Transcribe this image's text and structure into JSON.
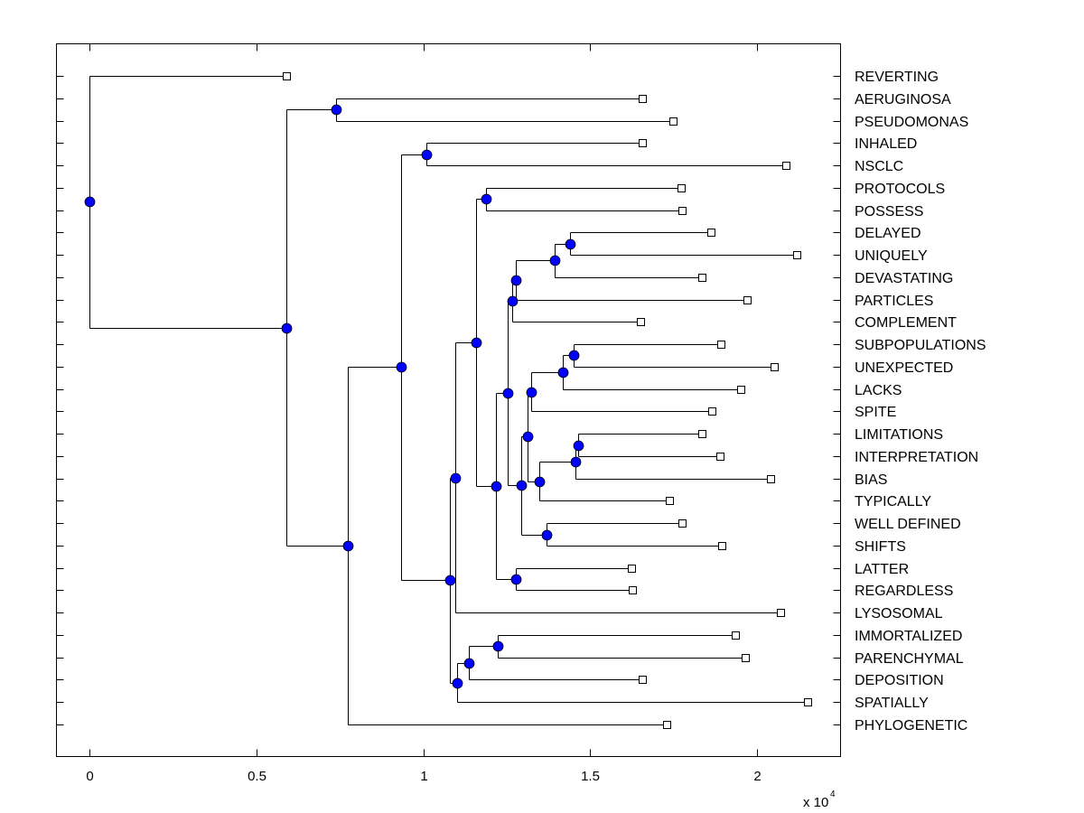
{
  "chart_data": {
    "type": "dendrogram",
    "title": "",
    "xlabel": "",
    "ylabel": "",
    "x_multiplier_label": "x 10",
    "x_multiplier_exponent": "4",
    "xlim": [
      -0.1,
      2.25
    ],
    "xticks": [
      0,
      0.5,
      1,
      1.5,
      2
    ],
    "xtick_labels": [
      "0",
      "0.5",
      "1",
      "1.5",
      "2"
    ],
    "grid": false,
    "internal_node_color": "#0000ff",
    "leaf_marker": "open-square",
    "leaves": [
      {
        "label": "REVERTING",
        "x": 0.589
      },
      {
        "label": "AERUGINOSA",
        "x": 1.657
      },
      {
        "label": "PSEUDOMONAS",
        "x": 1.749
      },
      {
        "label": "INHALED",
        "x": 1.657
      },
      {
        "label": "NSCLC",
        "x": 2.087
      },
      {
        "label": "PROTOCOLS",
        "x": 1.771
      },
      {
        "label": "POSSESS",
        "x": 1.774
      },
      {
        "label": "DELAYED",
        "x": 1.862
      },
      {
        "label": "UNIQUELY",
        "x": 2.12
      },
      {
        "label": "DEVASTATING",
        "x": 1.834
      },
      {
        "label": "PARTICLES",
        "x": 1.971
      },
      {
        "label": "COMPLEMENT",
        "x": 1.649
      },
      {
        "label": "SUBPOPULATIONS",
        "x": 1.891
      },
      {
        "label": "UNEXPECTED",
        "x": 2.052
      },
      {
        "label": "LACKS",
        "x": 1.951
      },
      {
        "label": "SPITE",
        "x": 1.864
      },
      {
        "label": "LIMITATIONS",
        "x": 1.834
      },
      {
        "label": "INTERPRETATION",
        "x": 1.888
      },
      {
        "label": "BIAS",
        "x": 2.041
      },
      {
        "label": "TYPICALLY",
        "x": 1.738
      },
      {
        "label": "WELL DEFINED",
        "x": 1.774
      },
      {
        "label": "SHIFTS",
        "x": 1.894
      },
      {
        "label": "LATTER",
        "x": 1.624
      },
      {
        "label": "REGARDLESS",
        "x": 1.627
      },
      {
        "label": "LYSOSOMAL",
        "x": 2.071
      },
      {
        "label": "IMMORTALIZED",
        "x": 1.935
      },
      {
        "label": "PARENCHYMAL",
        "x": 1.965
      },
      {
        "label": "DEPOSITION",
        "x": 1.657
      },
      {
        "label": "SPATIALLY",
        "x": 2.15
      },
      {
        "label": "PHYLOGENETIC",
        "x": 1.73
      }
    ],
    "nodes": [
      {
        "id": "root",
        "x": 0.0,
        "children": [
          "L:0",
          "A"
        ]
      },
      {
        "id": "A",
        "x": 0.589,
        "children": [
          "B",
          "C"
        ]
      },
      {
        "id": "B",
        "x": 0.738,
        "children": [
          "L:1",
          "L:2"
        ]
      },
      {
        "id": "C",
        "x": 0.774,
        "children": [
          "D",
          "L:29"
        ]
      },
      {
        "id": "D",
        "x": 0.932,
        "children": [
          "E",
          "F"
        ]
      },
      {
        "id": "E",
        "x": 1.008,
        "children": [
          "L:3",
          "L:4"
        ]
      },
      {
        "id": "F",
        "x": 1.079,
        "children": [
          "G",
          "H"
        ]
      },
      {
        "id": "G",
        "x": 1.095,
        "children": [
          "I",
          "L:24"
        ]
      },
      {
        "id": "I",
        "x": 1.158,
        "children": [
          "J",
          "K"
        ]
      },
      {
        "id": "J",
        "x": 1.188,
        "children": [
          "L:5",
          "L:6"
        ]
      },
      {
        "id": "K",
        "x": 1.218,
        "children": [
          "Lnode",
          "M"
        ]
      },
      {
        "id": "Lnode",
        "x": 1.251,
        "children": [
          "Q",
          "V"
        ]
      },
      {
        "id": "Q",
        "x": 1.267,
        "children": [
          "R",
          "L:11"
        ]
      },
      {
        "id": "R",
        "x": 1.278,
        "children": [
          "S",
          "L:10"
        ]
      },
      {
        "id": "S",
        "x": 1.392,
        "children": [
          "T",
          "L:9"
        ]
      },
      {
        "id": "T",
        "x": 1.439,
        "children": [
          "L:7",
          "L:8"
        ]
      },
      {
        "id": "V",
        "x": 1.294,
        "children": [
          "W",
          "X"
        ]
      },
      {
        "id": "W",
        "x": 1.313,
        "children": [
          "Y",
          "Z"
        ]
      },
      {
        "id": "Y",
        "x": 1.324,
        "children": [
          "AA",
          "L:15"
        ]
      },
      {
        "id": "AA",
        "x": 1.417,
        "children": [
          "AB",
          "L:14"
        ]
      },
      {
        "id": "AB",
        "x": 1.45,
        "children": [
          "L:12",
          "L:13"
        ]
      },
      {
        "id": "Z",
        "x": 1.346,
        "children": [
          "AC",
          "L:19"
        ]
      },
      {
        "id": "AC",
        "x": 1.455,
        "children": [
          "AD",
          "L:18"
        ]
      },
      {
        "id": "AD",
        "x": 1.463,
        "children": [
          "L:16",
          "L:17"
        ]
      },
      {
        "id": "X",
        "x": 1.368,
        "children": [
          "L:20",
          "L:21"
        ]
      },
      {
        "id": "M",
        "x": 1.278,
        "children": [
          "L:22",
          "L:23"
        ]
      },
      {
        "id": "H",
        "x": 1.101,
        "children": [
          "AE",
          "L:28"
        ]
      },
      {
        "id": "AE",
        "x": 1.136,
        "children": [
          "AF",
          "L:27"
        ]
      },
      {
        "id": "AF",
        "x": 1.223,
        "children": [
          "L:25",
          "L:26"
        ]
      }
    ]
  }
}
